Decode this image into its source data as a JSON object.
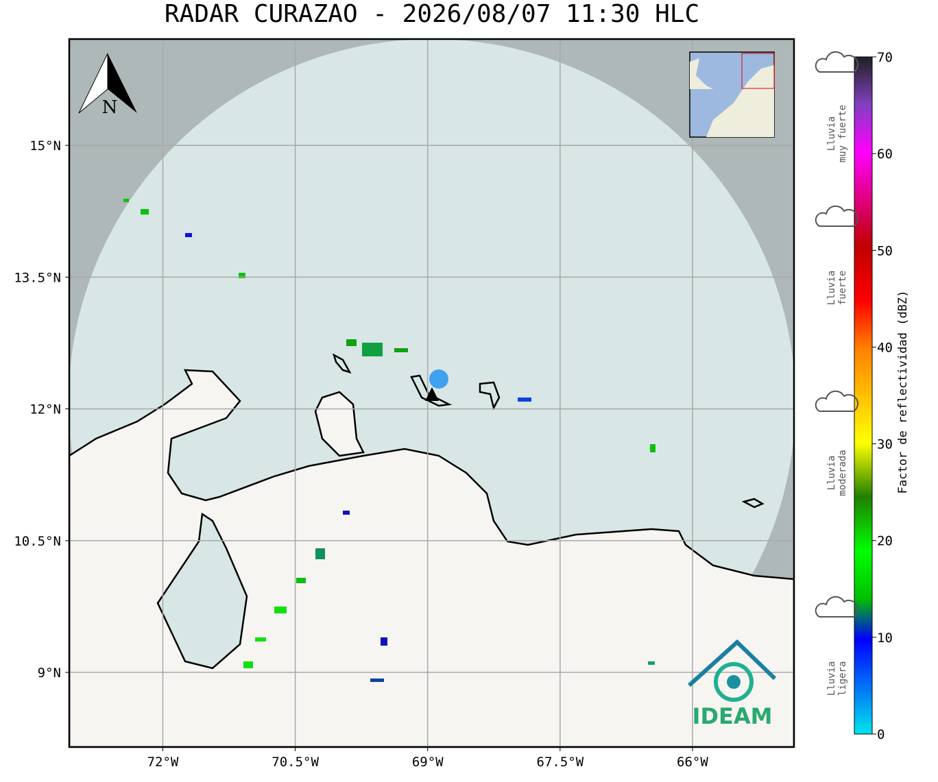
{
  "title": "RADAR CURAZAO - 2026/08/07 11:30 HLC",
  "map": {
    "xlim": [
      -73.06,
      -64.85
    ],
    "ylim": [
      8.15,
      16.21
    ],
    "xticks": [
      {
        "value": -72,
        "label": "72°W"
      },
      {
        "value": -70.5,
        "label": "70.5°W"
      },
      {
        "value": -69,
        "label": "69°W"
      },
      {
        "value": -67.5,
        "label": "67.5°W"
      },
      {
        "value": -66,
        "label": "66°W"
      }
    ],
    "yticks": [
      {
        "value": 15,
        "label": "15°N"
      },
      {
        "value": 13.5,
        "label": "13.5°N"
      },
      {
        "value": 12,
        "label": "12°N"
      },
      {
        "value": 10.5,
        "label": "10.5°N"
      },
      {
        "value": 9,
        "label": "9°N"
      }
    ],
    "grid": true
  },
  "north": "N",
  "logo": "IDEAM",
  "colorbar": {
    "label": "Factor de reflectividad (dBZ)",
    "lim": [
      0,
      70
    ],
    "ticks": [
      0,
      10,
      20,
      30,
      40,
      50,
      60,
      70
    ]
  },
  "legend": [
    {
      "lines": [
        "Lluvia",
        "muy fuerte"
      ]
    },
    {
      "lines": [
        "Lluvia",
        "fuerte"
      ]
    },
    {
      "lines": [
        "Lluvia",
        "moderada"
      ]
    },
    {
      "lines": [
        "Lluvia",
        "ligera"
      ]
    }
  ]
}
